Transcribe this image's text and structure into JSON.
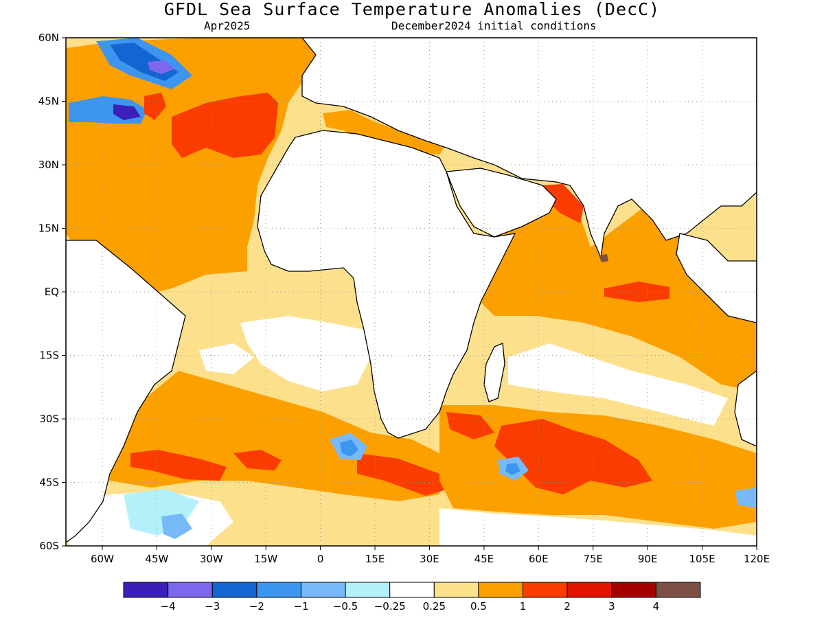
{
  "header": {
    "title": "GFDL Sea Surface Temperature Anomalies (DecC)",
    "valid_month": "Apr2025",
    "initial_conditions": "December2024 initial conditions"
  },
  "map": {
    "lon_range": [
      -70,
      120
    ],
    "lat_range": [
      -60,
      60
    ],
    "grid": "dotted",
    "lat_labels": [
      {
        "value": 60,
        "label": "60N"
      },
      {
        "value": 45,
        "label": "45N"
      },
      {
        "value": 30,
        "label": "30N"
      },
      {
        "value": 15,
        "label": "15N"
      },
      {
        "value": 0,
        "label": "EQ"
      },
      {
        "value": -15,
        "label": "15S"
      },
      {
        "value": -30,
        "label": "30S"
      },
      {
        "value": -45,
        "label": "45S"
      },
      {
        "value": -60,
        "label": "60S"
      }
    ],
    "lon_labels": [
      {
        "value": -60,
        "label": "60W"
      },
      {
        "value": -45,
        "label": "45W"
      },
      {
        "value": -30,
        "label": "30W"
      },
      {
        "value": -15,
        "label": "15W"
      },
      {
        "value": 0,
        "label": "0"
      },
      {
        "value": 15,
        "label": "15E"
      },
      {
        "value": 30,
        "label": "30E"
      },
      {
        "value": 45,
        "label": "45E"
      },
      {
        "value": 60,
        "label": "60E"
      },
      {
        "value": 75,
        "label": "75E"
      },
      {
        "value": 90,
        "label": "90E"
      },
      {
        "value": 105,
        "label": "105E"
      },
      {
        "value": 120,
        "label": "120E"
      }
    ]
  },
  "colorbar": {
    "colors": [
      "#3b1fb8",
      "#7b68ee",
      "#1464d2",
      "#3c96f0",
      "#78b9fa",
      "#b4f0fa",
      "#ffffff",
      "#fde08c",
      "#fca000",
      "#fa3c00",
      "#e11400",
      "#a50000",
      "#7d5046"
    ],
    "labels": [
      "−4",
      "−3",
      "−2",
      "−1",
      "−0.5",
      "−0.25",
      "0.25",
      "0.5",
      "1",
      "2",
      "3",
      "4"
    ]
  },
  "chart_data": {
    "type": "heatmap",
    "title": "GFDL Sea Surface Temperature Anomalies (DecC)",
    "xlim": [
      -70,
      120
    ],
    "ylim": [
      -60,
      60
    ],
    "anomaly_regions": [
      {
        "lon": -52,
        "lat": 55,
        "value": -2.5
      },
      {
        "lon": -45,
        "lat": 52,
        "value": -3
      },
      {
        "lon": -58,
        "lat": 44,
        "value": -2
      },
      {
        "lon": -50,
        "lat": 42,
        "value": -3.5
      },
      {
        "lon": -30,
        "lat": 38,
        "value": 1.5
      },
      {
        "lon": -15,
        "lat": 40,
        "value": 1.5
      },
      {
        "lon": -40,
        "lat": 20,
        "value": 0.75
      },
      {
        "lon": -20,
        "lat": 5,
        "value": 0.4
      },
      {
        "lon": 10,
        "lat": -20,
        "value": 0.1
      },
      {
        "lon": -30,
        "lat": -40,
        "value": 1.5
      },
      {
        "lon": 60,
        "lat": 20,
        "value": 1.5
      },
      {
        "lon": 85,
        "lat": 0,
        "value": 1.5
      },
      {
        "lon": 75,
        "lat": -40,
        "value": 1.5
      },
      {
        "lon": 55,
        "lat": -42,
        "value": -1
      },
      {
        "lon": 8,
        "lat": -38,
        "value": -1
      },
      {
        "lon": -40,
        "lat": -55,
        "value": -0.4
      }
    ]
  }
}
